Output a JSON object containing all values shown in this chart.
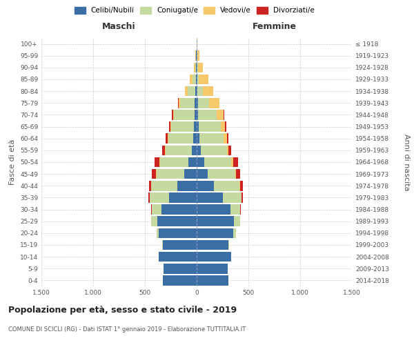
{
  "age_groups": [
    "0-4",
    "5-9",
    "10-14",
    "15-19",
    "20-24",
    "25-29",
    "30-34",
    "35-39",
    "40-44",
    "45-49",
    "50-54",
    "55-59",
    "60-64",
    "65-69",
    "70-74",
    "75-79",
    "80-84",
    "85-89",
    "90-94",
    "95-99",
    "100+"
  ],
  "birth_years": [
    "2014-2018",
    "2009-2013",
    "2004-2008",
    "1999-2003",
    "1994-1998",
    "1989-1993",
    "1984-1988",
    "1979-1983",
    "1974-1978",
    "1969-1973",
    "1964-1968",
    "1959-1963",
    "1954-1958",
    "1949-1953",
    "1944-1948",
    "1939-1943",
    "1934-1938",
    "1929-1933",
    "1924-1928",
    "1919-1923",
    "≤ 1918"
  ],
  "colors": {
    "celibi": "#3B6EA5",
    "coniugati": "#C5D9A0",
    "vedovi": "#F5C96A",
    "divorziati": "#CC2222"
  },
  "males": {
    "celibi": [
      330,
      320,
      370,
      330,
      370,
      380,
      340,
      270,
      185,
      120,
      80,
      45,
      35,
      28,
      22,
      18,
      12,
      8,
      4,
      4,
      2
    ],
    "coniugati": [
      0,
      0,
      0,
      5,
      20,
      60,
      95,
      185,
      255,
      270,
      275,
      255,
      240,
      220,
      195,
      140,
      75,
      30,
      12,
      5,
      0
    ],
    "vedovi": [
      0,
      0,
      0,
      0,
      0,
      0,
      0,
      0,
      0,
      5,
      5,
      5,
      5,
      5,
      10,
      15,
      28,
      28,
      12,
      5,
      0
    ],
    "divorziati": [
      0,
      0,
      0,
      0,
      0,
      0,
      5,
      12,
      22,
      38,
      48,
      28,
      22,
      15,
      14,
      5,
      0,
      0,
      0,
      0,
      0
    ]
  },
  "females": {
    "nubili": [
      305,
      300,
      335,
      305,
      355,
      360,
      325,
      250,
      165,
      105,
      70,
      40,
      28,
      20,
      16,
      12,
      8,
      5,
      3,
      3,
      2
    ],
    "coniugate": [
      0,
      0,
      0,
      5,
      25,
      60,
      95,
      185,
      250,
      265,
      265,
      250,
      235,
      210,
      175,
      110,
      55,
      18,
      8,
      4,
      0
    ],
    "vedove": [
      0,
      0,
      0,
      0,
      0,
      0,
      0,
      0,
      5,
      10,
      15,
      18,
      28,
      45,
      70,
      95,
      100,
      88,
      52,
      18,
      5
    ],
    "divorziate": [
      0,
      0,
      0,
      0,
      0,
      0,
      5,
      12,
      28,
      38,
      48,
      28,
      18,
      10,
      8,
      5,
      0,
      0,
      0,
      0,
      0
    ]
  },
  "title": "Popolazione per età, sesso e stato civile - 2019",
  "subtitle": "COMUNE DI SCICLI (RG) - Dati ISTAT 1° gennaio 2019 - Elaborazione TUTTITALIA.IT",
  "xlabel_left": "Maschi",
  "xlabel_right": "Femmine",
  "ylabel_left": "Fasce di età",
  "ylabel_right": "Anni di nascita",
  "xlim": 1500,
  "xticks": [
    -1500,
    -1000,
    -500,
    0,
    500,
    1000,
    1500
  ],
  "xticklabels": [
    "1.500",
    "1.000",
    "500",
    "0",
    "500",
    "1.000",
    "1.500"
  ],
  "bg_color": "#FFFFFF",
  "grid_color": "#CCCCCC"
}
